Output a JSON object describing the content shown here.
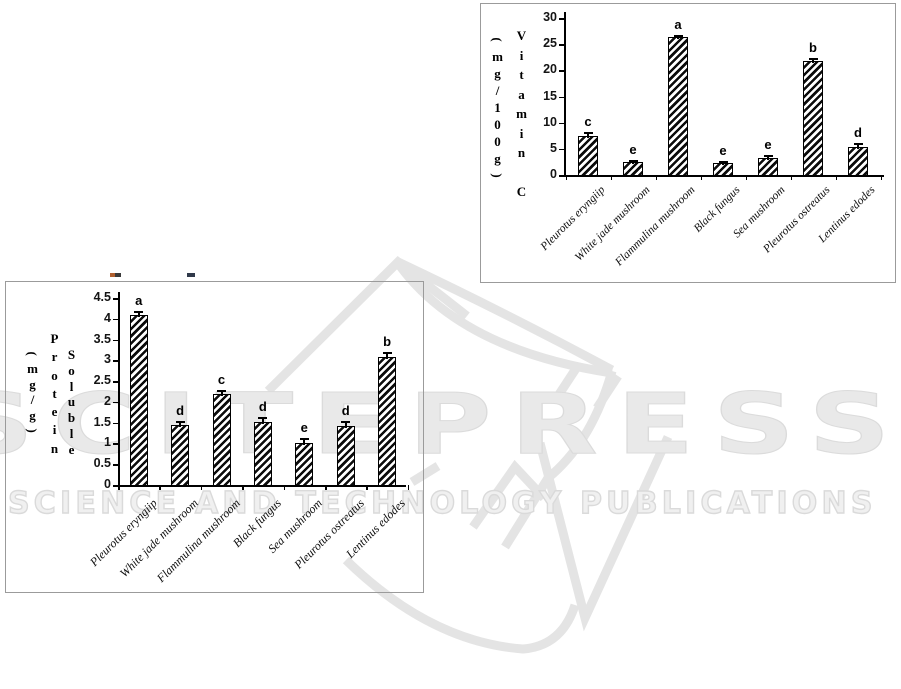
{
  "watermark": {
    "big_text": "SCITEPRESS",
    "small_text": "SCIENCE AND TECHNOLOGY PUBLICATIONS"
  },
  "colors": {
    "bar_fill": "#ffffff",
    "bar_hatch": "#000000",
    "box_border": "#9b9b9b",
    "watermark_gray": "#e5e5e5",
    "text": "#000000"
  },
  "chart_data": [
    {
      "id": "vitamin_c",
      "type": "bar",
      "title": "",
      "ylabel": "Vitamin C (mg/100g)",
      "ylabel_columns": [
        "(mg/100g)",
        "Vitamin C"
      ],
      "xlabel": "",
      "categories": [
        "Pleurotus eryngiip",
        "White jade mushroom",
        "Flammulina mushroom",
        "Black fungus",
        "Sea mushroom",
        "Pleurotus ostreatus",
        "Lentinus edodes"
      ],
      "values": [
        7.5,
        2.5,
        26.3,
        2.2,
        3.3,
        21.7,
        5.4
      ],
      "errors": [
        0.5,
        0.12,
        0.2,
        0.25,
        0.35,
        0.55,
        0.6
      ],
      "sig_letters": [
        "c",
        "e",
        "a",
        "e",
        "e",
        "b",
        "d"
      ],
      "ylim": [
        0,
        30
      ],
      "yticks": [
        0,
        5,
        10,
        15,
        20,
        25,
        30
      ],
      "grid": false,
      "legend": "none",
      "bar_style": "black diagonal hatch on white"
    },
    {
      "id": "soluble_protein",
      "type": "bar",
      "title": "",
      "ylabel": "Soluble Protein (mg/g)",
      "ylabel_columns": [
        "(mg/g)",
        "Protein",
        "Soluble"
      ],
      "xlabel": "",
      "categories": [
        "Pleurotus eryngiip",
        "White jade mushroom",
        "Flammulina mushroom",
        "Black fungus",
        "Sea mushroom",
        "Pleurotus ostreatus",
        "Lentinus edodes"
      ],
      "values": [
        4.1,
        1.45,
        2.18,
        1.52,
        1.0,
        1.43,
        3.08
      ],
      "errors": [
        0.07,
        0.07,
        0.08,
        0.1,
        0.1,
        0.08,
        0.09
      ],
      "sig_letters": [
        "a",
        "d",
        "c",
        "d",
        "e",
        "d",
        "b"
      ],
      "ylim": [
        0,
        4.5
      ],
      "yticks": [
        0,
        0.5,
        1,
        1.5,
        2,
        2.5,
        3,
        3.5,
        4,
        4.5
      ],
      "grid": false,
      "legend": "none",
      "bar_style": "black diagonal hatch on white"
    }
  ]
}
